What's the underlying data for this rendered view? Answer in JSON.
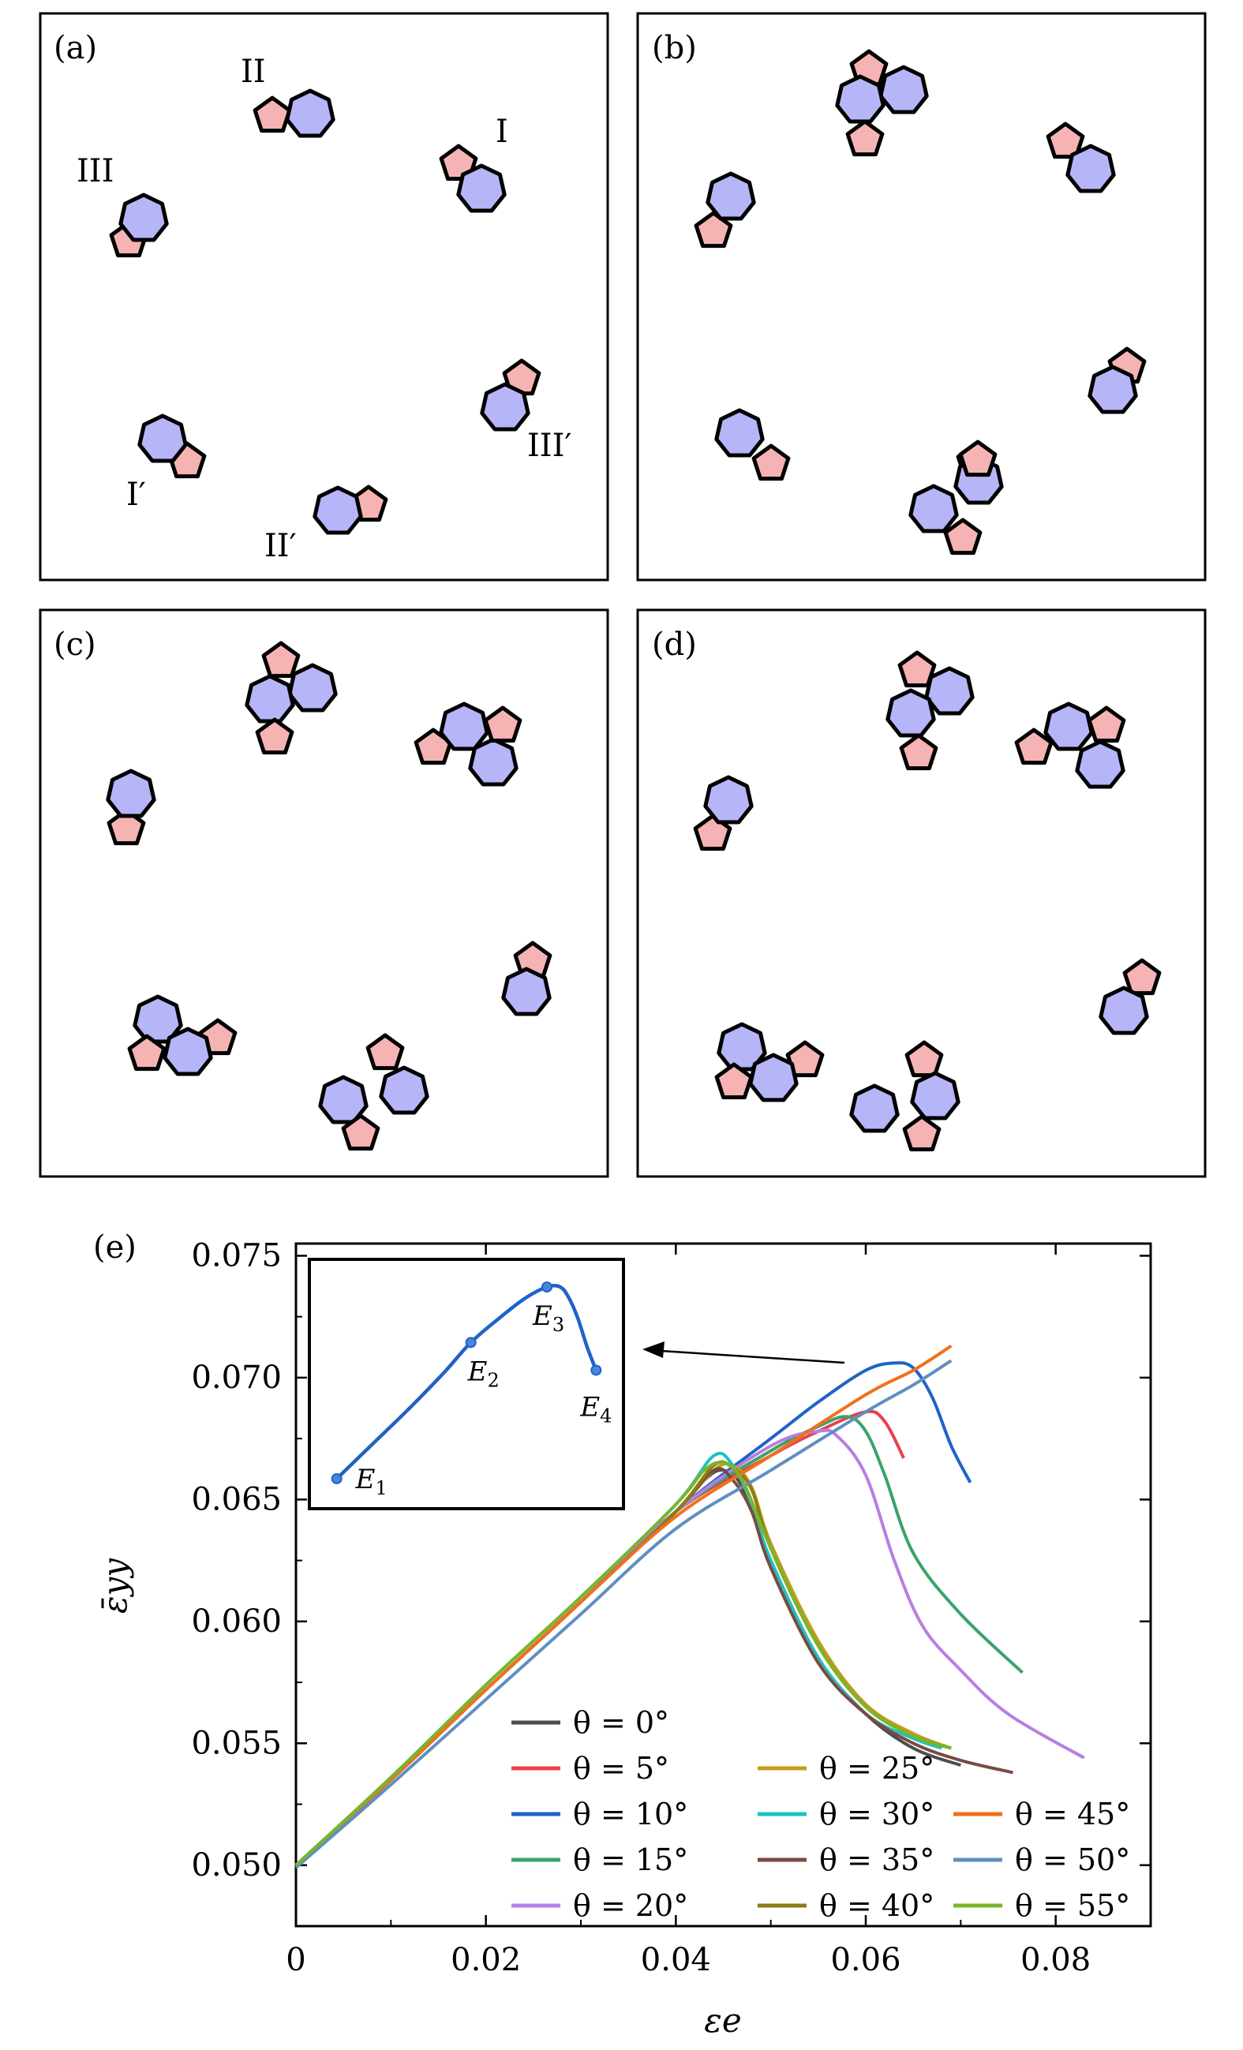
{
  "panels": [
    {
      "label": "(a)",
      "group_labels": [
        "I",
        "II",
        "III",
        "I′",
        "II′",
        "III′"
      ]
    },
    {
      "label": "(b)"
    },
    {
      "label": "(c)"
    },
    {
      "label": "(d)"
    }
  ],
  "colors": {
    "heptagon_fill": "#b5b5f7",
    "pentagon_fill": "#f6b3b3",
    "outline": "#000000"
  },
  "chart_data": {
    "type": "line",
    "panel_label": "(e)",
    "xlabel": "εe",
    "ylabel": "ε̄yy",
    "xlim": [
      0,
      0.09
    ],
    "ylim": [
      0.0475,
      0.0755
    ],
    "xticks": [
      "0",
      "0.02",
      "0.04",
      "0.06",
      "0.08"
    ],
    "yticks": [
      "0.050",
      "0.055",
      "0.060",
      "0.065",
      "0.070",
      "0.075"
    ],
    "grid": false,
    "legend_placement": "bottom-center",
    "series": [
      {
        "name": "θ = 0°",
        "color": "#4d4d4d",
        "x": [
          0,
          0.01,
          0.02,
          0.03,
          0.04,
          0.043,
          0.045,
          0.047,
          0.05,
          0.055,
          0.06,
          0.065,
          0.07
        ],
        "y": [
          0.05,
          0.0535,
          0.0572,
          0.0608,
          0.0645,
          0.0658,
          0.0662,
          0.0655,
          0.0625,
          0.0585,
          0.0562,
          0.0548,
          0.0541
        ]
      },
      {
        "name": "θ = 5°",
        "color": "#e8424a",
        "x": [
          0,
          0.01,
          0.02,
          0.03,
          0.04,
          0.05,
          0.055,
          0.06,
          0.062,
          0.064
        ],
        "y": [
          0.05,
          0.0535,
          0.0572,
          0.0608,
          0.0645,
          0.0668,
          0.0678,
          0.0686,
          0.0682,
          0.0667
        ]
      },
      {
        "name": "θ = 10°",
        "color": "#1f63c8",
        "x": [
          0,
          0.01,
          0.02,
          0.03,
          0.04,
          0.05,
          0.055,
          0.06,
          0.063,
          0.065,
          0.067,
          0.069,
          0.071
        ],
        "y": [
          0.05,
          0.0535,
          0.0572,
          0.0608,
          0.0645,
          0.0675,
          0.069,
          0.0703,
          0.0706,
          0.0704,
          0.0692,
          0.0672,
          0.0657
        ]
      },
      {
        "name": "θ = 15°",
        "color": "#3aa36b",
        "x": [
          0,
          0.01,
          0.02,
          0.03,
          0.04,
          0.05,
          0.055,
          0.058,
          0.06,
          0.062,
          0.065,
          0.07,
          0.0765
        ],
        "y": [
          0.05,
          0.0535,
          0.0572,
          0.0608,
          0.0645,
          0.067,
          0.068,
          0.0684,
          0.0678,
          0.066,
          0.0628,
          0.0603,
          0.0579
        ]
      },
      {
        "name": "θ = 20°",
        "color": "#b77fe0",
        "x": [
          0,
          0.01,
          0.02,
          0.03,
          0.04,
          0.05,
          0.055,
          0.057,
          0.06,
          0.063,
          0.066,
          0.07,
          0.075,
          0.083
        ],
        "y": [
          0.05,
          0.0535,
          0.0572,
          0.0608,
          0.0645,
          0.0672,
          0.0678,
          0.0676,
          0.066,
          0.0625,
          0.0598,
          0.058,
          0.0562,
          0.0544
        ]
      },
      {
        "name": "θ = 25°",
        "color": "#c99a1c",
        "x": [
          0,
          0.01,
          0.02,
          0.03,
          0.04,
          0.044,
          0.046,
          0.048,
          0.05,
          0.055,
          0.06,
          0.065,
          0.069
        ],
        "y": [
          0.05,
          0.0535,
          0.0572,
          0.0608,
          0.0645,
          0.0662,
          0.0664,
          0.0655,
          0.0632,
          0.0592,
          0.0566,
          0.0554,
          0.0548
        ]
      },
      {
        "name": "θ = 30°",
        "color": "#1ec2c2",
        "x": [
          0,
          0.01,
          0.02,
          0.03,
          0.04,
          0.044,
          0.046,
          0.048,
          0.05,
          0.055,
          0.06,
          0.065,
          0.068
        ],
        "y": [
          0.05,
          0.0536,
          0.0574,
          0.061,
          0.0648,
          0.0668,
          0.0664,
          0.0648,
          0.0625,
          0.0585,
          0.0562,
          0.0552,
          0.0548
        ]
      },
      {
        "name": "θ = 35°",
        "color": "#7a4a42",
        "x": [
          0,
          0.01,
          0.02,
          0.03,
          0.04,
          0.044,
          0.046,
          0.048,
          0.05,
          0.055,
          0.06,
          0.065,
          0.07,
          0.0755
        ],
        "y": [
          0.05,
          0.0535,
          0.0572,
          0.0608,
          0.0645,
          0.0662,
          0.0658,
          0.0645,
          0.0622,
          0.0583,
          0.0562,
          0.055,
          0.0543,
          0.0538
        ]
      },
      {
        "name": "θ = 40°",
        "color": "#8a7d12",
        "x": [
          0,
          0.01,
          0.02,
          0.03,
          0.04,
          0.044,
          0.046,
          0.048,
          0.05,
          0.055,
          0.06,
          0.065,
          0.069
        ],
        "y": [
          0.05,
          0.0535,
          0.0572,
          0.0608,
          0.0645,
          0.0664,
          0.0663,
          0.0654,
          0.063,
          0.059,
          0.0565,
          0.0553,
          0.0548
        ]
      },
      {
        "name": "θ = 45°",
        "color": "#f0701e",
        "x": [
          0,
          0.01,
          0.02,
          0.03,
          0.04,
          0.05,
          0.06,
          0.065,
          0.069
        ],
        "y": [
          0.05,
          0.0535,
          0.0572,
          0.0608,
          0.0643,
          0.0668,
          0.0693,
          0.0703,
          0.0713
        ]
      },
      {
        "name": "θ = 50°",
        "color": "#5f8fc2",
        "x": [
          0,
          0.01,
          0.02,
          0.03,
          0.04,
          0.05,
          0.06,
          0.065,
          0.069
        ],
        "y": [
          0.0499,
          0.0533,
          0.0568,
          0.0603,
          0.0638,
          0.0662,
          0.0686,
          0.0697,
          0.0707
        ]
      },
      {
        "name": "θ = 55°",
        "color": "#7ab52a",
        "x": [
          0,
          0.01,
          0.02,
          0.03,
          0.04,
          0.043,
          0.045,
          0.047,
          0.05,
          0.055,
          0.06,
          0.065,
          0.069
        ],
        "y": [
          0.05,
          0.0536,
          0.0574,
          0.061,
          0.0648,
          0.0662,
          0.0665,
          0.0658,
          0.063,
          0.059,
          0.0565,
          0.0553,
          0.0548
        ]
      }
    ],
    "inset": {
      "series": "θ = 10°",
      "points": [
        {
          "label": "E1",
          "x": 0.002,
          "y": 0.0653
        },
        {
          "label": "E2",
          "x": 0.017,
          "y": 0.0712
        },
        {
          "label": "E3",
          "x": 0.0255,
          "y": 0.0736
        },
        {
          "label": "E4",
          "x": 0.031,
          "y": 0.07
        }
      ],
      "curve": {
        "x": [
          0.002,
          0.006,
          0.01,
          0.014,
          0.017,
          0.02,
          0.023,
          0.0255,
          0.027,
          0.028,
          0.029,
          0.03,
          0.031
        ],
        "y": [
          0.0653,
          0.0668,
          0.0683,
          0.0699,
          0.0712,
          0.0722,
          0.0731,
          0.0736,
          0.0736,
          0.0731,
          0.0722,
          0.071,
          0.07
        ]
      },
      "xlim": [
        0,
        0.033
      ],
      "ylim": [
        0.064,
        0.0748
      ]
    }
  }
}
